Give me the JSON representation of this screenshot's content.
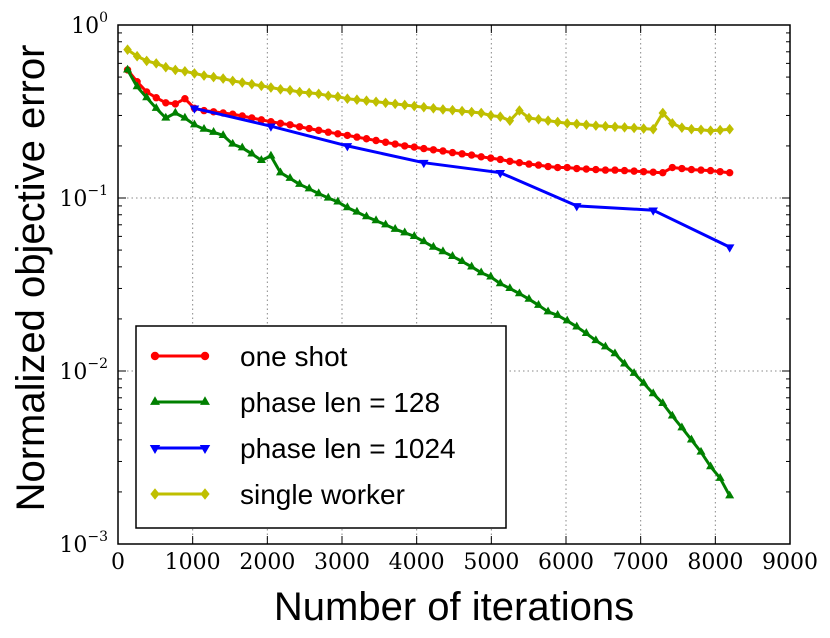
{
  "chart_data": {
    "type": "line",
    "xlabel": "Number of iterations",
    "ylabel": "Normalized objective error",
    "xlim": [
      0,
      9000
    ],
    "ylim": [
      0.001,
      1
    ],
    "yscale": "log",
    "grid": true,
    "legend_position": "bottom-left",
    "x_ticks": [
      "0",
      "1000",
      "2000",
      "3000",
      "4000",
      "5000",
      "6000",
      "7000",
      "8000",
      "9000"
    ],
    "y_ticks": [
      {
        "value": 0.001,
        "base": "10",
        "exp": "−3"
      },
      {
        "value": 0.01,
        "base": "10",
        "exp": "−2"
      },
      {
        "value": 0.1,
        "base": "10",
        "exp": "−1"
      },
      {
        "value": 1,
        "base": "10",
        "exp": "0"
      }
    ],
    "series": [
      {
        "name": "one shot",
        "color": "#ff0000",
        "marker": "circle",
        "x": [
          128,
          256,
          384,
          512,
          640,
          768,
          896,
          1024,
          1152,
          1280,
          1408,
          1536,
          1664,
          1792,
          1920,
          2048,
          2176,
          2304,
          2432,
          2560,
          2688,
          2816,
          2944,
          3072,
          3200,
          3328,
          3456,
          3584,
          3712,
          3840,
          3968,
          4096,
          4224,
          4352,
          4480,
          4608,
          4736,
          4864,
          4992,
          5120,
          5248,
          5376,
          5504,
          5632,
          5760,
          5888,
          6016,
          6144,
          6272,
          6400,
          6528,
          6656,
          6784,
          6912,
          7040,
          7168,
          7296,
          7424,
          7552,
          7680,
          7808,
          7936,
          8064,
          8192
        ],
        "y": [
          0.55,
          0.47,
          0.41,
          0.38,
          0.355,
          0.35,
          0.375,
          0.33,
          0.32,
          0.315,
          0.31,
          0.305,
          0.298,
          0.29,
          0.283,
          0.276,
          0.27,
          0.265,
          0.258,
          0.252,
          0.246,
          0.24,
          0.235,
          0.23,
          0.225,
          0.22,
          0.215,
          0.21,
          0.205,
          0.2,
          0.197,
          0.193,
          0.19,
          0.187,
          0.183,
          0.18,
          0.177,
          0.173,
          0.17,
          0.167,
          0.163,
          0.16,
          0.157,
          0.155,
          0.152,
          0.15,
          0.15,
          0.148,
          0.147,
          0.146,
          0.145,
          0.145,
          0.144,
          0.143,
          0.142,
          0.141,
          0.14,
          0.15,
          0.148,
          0.146,
          0.145,
          0.144,
          0.142,
          0.14
        ]
      },
      {
        "name": "phase len = 128",
        "color": "#008000",
        "marker": "triangle-up",
        "x": [
          128,
          256,
          384,
          512,
          640,
          768,
          896,
          1024,
          1152,
          1280,
          1408,
          1536,
          1664,
          1792,
          1920,
          2048,
          2176,
          2304,
          2432,
          2560,
          2688,
          2816,
          2944,
          3072,
          3200,
          3328,
          3456,
          3584,
          3712,
          3840,
          3968,
          4096,
          4224,
          4352,
          4480,
          4608,
          4736,
          4864,
          4992,
          5120,
          5248,
          5376,
          5504,
          5632,
          5760,
          5888,
          6016,
          6144,
          6272,
          6400,
          6528,
          6656,
          6784,
          6912,
          7040,
          7168,
          7296,
          7424,
          7552,
          7680,
          7808,
          7936,
          8064,
          8192
        ],
        "y": [
          0.55,
          0.44,
          0.38,
          0.33,
          0.29,
          0.31,
          0.29,
          0.265,
          0.25,
          0.24,
          0.23,
          0.205,
          0.195,
          0.18,
          0.165,
          0.175,
          0.14,
          0.13,
          0.12,
          0.113,
          0.106,
          0.1,
          0.095,
          0.088,
          0.083,
          0.078,
          0.074,
          0.07,
          0.066,
          0.063,
          0.06,
          0.056,
          0.052,
          0.049,
          0.046,
          0.043,
          0.04,
          0.037,
          0.035,
          0.032,
          0.03,
          0.028,
          0.026,
          0.024,
          0.022,
          0.021,
          0.0195,
          0.018,
          0.0165,
          0.015,
          0.0138,
          0.0126,
          0.011,
          0.0097,
          0.0085,
          0.0074,
          0.0065,
          0.0055,
          0.0047,
          0.004,
          0.0034,
          0.0028,
          0.0024,
          0.0019
        ]
      },
      {
        "name": "phase len = 1024",
        "color": "#0000ff",
        "marker": "triangle-down",
        "x": [
          1024,
          2048,
          3072,
          4096,
          5120,
          6144,
          7168,
          8192
        ],
        "y": [
          0.33,
          0.26,
          0.2,
          0.16,
          0.14,
          0.09,
          0.085,
          0.052
        ]
      },
      {
        "name": "single worker",
        "color": "#bfbf00",
        "marker": "diamond",
        "x": [
          128,
          256,
          384,
          512,
          640,
          768,
          896,
          1024,
          1152,
          1280,
          1408,
          1536,
          1664,
          1792,
          1920,
          2048,
          2176,
          2304,
          2432,
          2560,
          2688,
          2816,
          2944,
          3072,
          3200,
          3328,
          3456,
          3584,
          3712,
          3840,
          3968,
          4096,
          4224,
          4352,
          4480,
          4608,
          4736,
          4864,
          4992,
          5120,
          5248,
          5376,
          5504,
          5632,
          5760,
          5888,
          6016,
          6144,
          6272,
          6400,
          6528,
          6656,
          6784,
          6912,
          7040,
          7168,
          7296,
          7424,
          7552,
          7680,
          7808,
          7936,
          8064,
          8192
        ],
        "y": [
          0.72,
          0.66,
          0.62,
          0.6,
          0.57,
          0.55,
          0.54,
          0.525,
          0.51,
          0.5,
          0.49,
          0.475,
          0.465,
          0.455,
          0.445,
          0.435,
          0.425,
          0.42,
          0.41,
          0.405,
          0.4,
          0.39,
          0.385,
          0.375,
          0.37,
          0.365,
          0.36,
          0.355,
          0.35,
          0.345,
          0.34,
          0.335,
          0.33,
          0.325,
          0.322,
          0.318,
          0.314,
          0.31,
          0.3,
          0.295,
          0.28,
          0.32,
          0.29,
          0.285,
          0.28,
          0.275,
          0.27,
          0.268,
          0.265,
          0.262,
          0.26,
          0.258,
          0.256,
          0.254,
          0.252,
          0.25,
          0.31,
          0.27,
          0.255,
          0.25,
          0.248,
          0.245,
          0.247,
          0.25
        ]
      }
    ]
  }
}
